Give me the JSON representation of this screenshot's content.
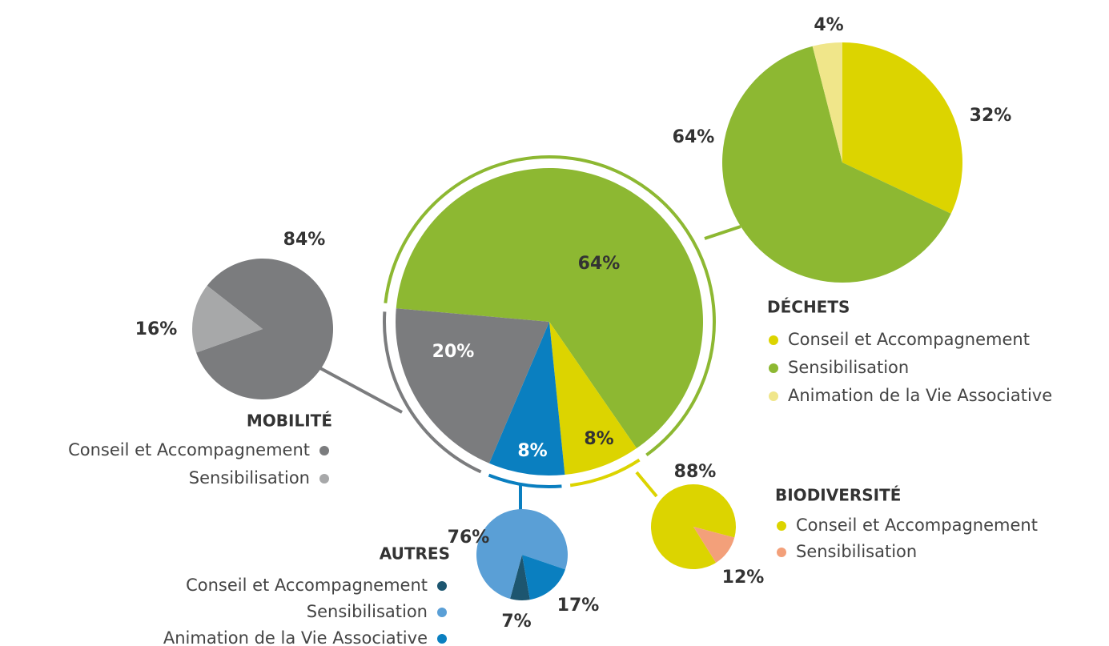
{
  "chart_data": [
    {
      "type": "pie",
      "values": [
        64,
        8,
        8,
        20
      ],
      "value_labels": [
        "64%",
        "8%",
        "8%",
        "20%"
      ],
      "colors": [
        "#8db832",
        "#dcd400",
        "#0a7fc0",
        "#7b7c7e"
      ]
    },
    {
      "type": "pie",
      "title": "DÉCHETS",
      "categories": [
        "Conseil et Accompagnement",
        "Sensibilisation",
        "Animation de la Vie Associative"
      ],
      "values": [
        32,
        64,
        4
      ],
      "value_labels": [
        "32%",
        "64%",
        "4%"
      ],
      "colors": [
        "#dcd400",
        "#8db832",
        "#f0e68a"
      ]
    },
    {
      "type": "pie",
      "title": "MOBILITÉ",
      "categories": [
        "Conseil et Accompagnement",
        "Sensibilisation"
      ],
      "values": [
        84,
        16
      ],
      "value_labels": [
        "84%",
        "16%"
      ],
      "colors": [
        "#7b7c7e",
        "#a7a8a9"
      ]
    },
    {
      "type": "pie",
      "title": "BIODIVERSITÉ",
      "categories": [
        "Conseil et Accompagnement",
        "Sensibilisation"
      ],
      "values": [
        88,
        12
      ],
      "value_labels": [
        "88%",
        "12%"
      ],
      "colors": [
        "#dcd400",
        "#f3a07a"
      ]
    },
    {
      "type": "pie",
      "title": "AUTRES",
      "categories": [
        "Conseil et Accompagnement",
        "Sensibilisation",
        "Animation de la Vie Associative"
      ],
      "values": [
        7,
        76,
        17
      ],
      "value_labels": [
        "7%",
        "76%",
        "17%"
      ],
      "colors": [
        "#1d5670",
        "#5a9fd6",
        "#0a7fc0"
      ]
    }
  ]
}
